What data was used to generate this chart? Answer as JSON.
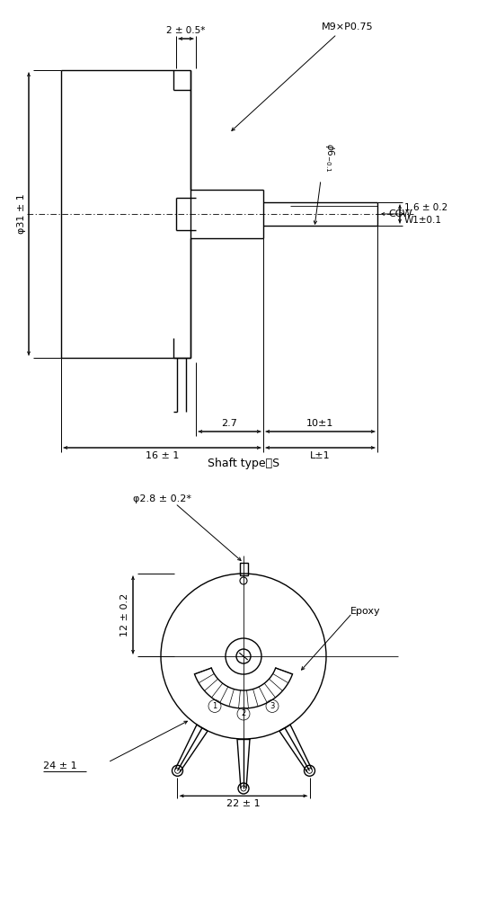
{
  "bg_color": "#ffffff",
  "line_color": "#000000",
  "fig_width": 5.42,
  "fig_height": 10.0,
  "dpi": 100,
  "top": {
    "2pm05": "2 ± 0.5*",
    "M9xP075": "M9×P0.75",
    "phi6": "φ6₋₀.₁",
    "phi31": "φ31 ± 1",
    "CCW": "CCW",
    "dim16": "1.6 ± 0.2",
    "W1": "W1±0.1",
    "d27": "2.7",
    "d10": "10±1",
    "d16": "16 ± 1",
    "dL": "L±1"
  },
  "bot": {
    "shaft_type": "Shaft type：S",
    "phi28": "φ2.8 ± 0.2*",
    "epoxy": "Epoxy",
    "d12": "12 ± 0.2",
    "d24": "24 ± 1",
    "d22": "22 ± 1"
  }
}
